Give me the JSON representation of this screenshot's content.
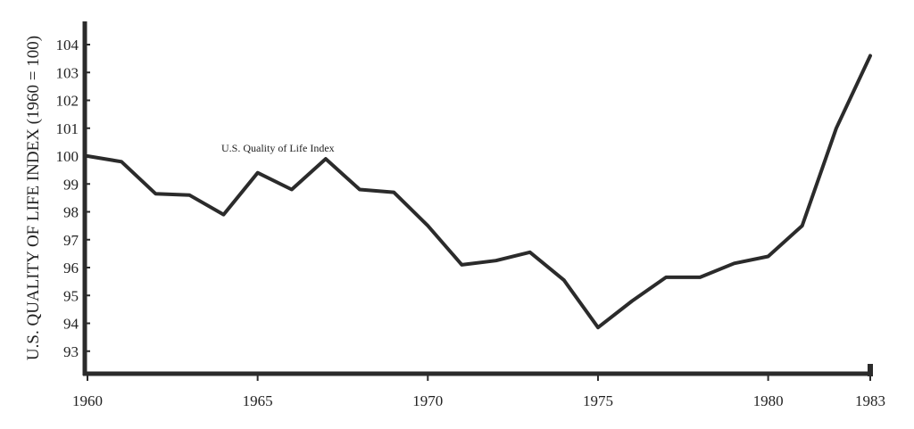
{
  "chart_data": {
    "type": "line",
    "title": "",
    "xlabel": "",
    "ylabel": "U.S. QUALITY OF LIFE INDEX (1960 = 100)",
    "xlim": [
      1960,
      1983
    ],
    "ylim": [
      92,
      105
    ],
    "x_ticks": [
      "1960",
      "1965",
      "1970",
      "1975",
      "1980",
      "1983"
    ],
    "y_ticks": [
      "93",
      "94",
      "95",
      "96",
      "97",
      "98",
      "99",
      "100",
      "101",
      "102",
      "103",
      "104"
    ],
    "annotation": "U.S. Quality of Life Index",
    "grid": false,
    "line_color": "#2b2b2b",
    "series": [
      {
        "x": [
          1960,
          1961,
          1962,
          1963,
          1964,
          1965,
          1966,
          1967,
          1968,
          1969,
          1970,
          1971,
          1972,
          1973,
          1974,
          1975,
          1976,
          1977,
          1978,
          1979,
          1980,
          1981,
          1982,
          1983
        ],
        "values": [
          100.0,
          99.8,
          98.65,
          98.6,
          97.9,
          99.4,
          98.8,
          99.9,
          98.8,
          98.7,
          97.5,
          96.1,
          96.25,
          96.55,
          95.55,
          93.85,
          94.8,
          95.65,
          95.65,
          96.15,
          96.4,
          97.5,
          101.0,
          103.6
        ]
      }
    ]
  }
}
